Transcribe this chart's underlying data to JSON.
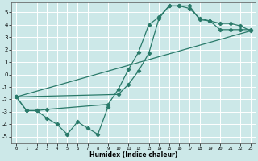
{
  "xlabel": "Humidex (Indice chaleur)",
  "bg_color": "#cce8e8",
  "grid_color": "#ffffff",
  "line_color": "#2a7a6a",
  "xlim": [
    -0.5,
    23.5
  ],
  "ylim": [
    -5.5,
    5.8
  ],
  "xticks": [
    0,
    1,
    2,
    3,
    4,
    5,
    6,
    7,
    8,
    9,
    10,
    11,
    12,
    13,
    14,
    15,
    16,
    17,
    18,
    19,
    20,
    21,
    22,
    23
  ],
  "yticks": [
    -5,
    -4,
    -3,
    -2,
    -1,
    0,
    1,
    2,
    3,
    4,
    5
  ],
  "line1_x": [
    0,
    1,
    2,
    3,
    4,
    5,
    6,
    7,
    8,
    9,
    10,
    11,
    12,
    13,
    14,
    15,
    16,
    17,
    18,
    19,
    20,
    21,
    22,
    23
  ],
  "line1_y": [
    -1.8,
    -2.9,
    -2.9,
    -3.5,
    -4.0,
    -4.8,
    -3.8,
    -4.3,
    -4.8,
    -2.6,
    null,
    null,
    null,
    null,
    null,
    null,
    null,
    null,
    null,
    null,
    null,
    null,
    null,
    null
  ],
  "line2_x": [
    0,
    1,
    2,
    3,
    9,
    10,
    11,
    12,
    13,
    14,
    15,
    16,
    17,
    18,
    19,
    20,
    21,
    22,
    23
  ],
  "line2_y": [
    -1.8,
    -2.9,
    -2.9,
    -2.8,
    -2.4,
    -1.2,
    0.4,
    1.8,
    4.0,
    4.6,
    5.5,
    5.5,
    5.3,
    4.5,
    4.3,
    4.1,
    4.1,
    3.9,
    3.5
  ],
  "line3_x": [
    0,
    10,
    11,
    12,
    13,
    14,
    15,
    16,
    17,
    18,
    19,
    20,
    21,
    22,
    23
  ],
  "line3_y": [
    -1.8,
    -1.6,
    -0.8,
    0.3,
    1.7,
    4.5,
    5.5,
    5.5,
    5.5,
    4.4,
    4.3,
    3.6,
    3.6,
    3.6,
    3.6
  ],
  "line4_x": [
    0,
    23
  ],
  "line4_y": [
    -1.8,
    3.5
  ]
}
